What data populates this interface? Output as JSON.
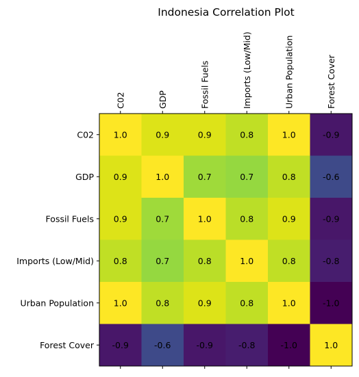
{
  "chart_data": {
    "type": "heatmap",
    "title": "Indonesia Correlation Plot",
    "x_categories": [
      "C02",
      "GDP",
      "Fossil Fuels",
      "Imports (Low/Mid)",
      "Urban Population",
      "Forest Cover"
    ],
    "y_categories": [
      "C02",
      "GDP",
      "Fossil Fuels",
      "Imports (Low/Mid)",
      "Urban Population",
      "Forest Cover"
    ],
    "x_tick_position": "top",
    "x_tick_rotation": 90,
    "colormap": "viridis",
    "value_range": [
      -1.0,
      1.0
    ],
    "grid": false,
    "values": [
      [
        1.0,
        0.9,
        0.9,
        0.8,
        1.0,
        -0.9
      ],
      [
        0.9,
        1.0,
        0.7,
        0.7,
        0.8,
        -0.6
      ],
      [
        0.9,
        0.7,
        1.0,
        0.8,
        0.9,
        -0.9
      ],
      [
        0.8,
        0.7,
        0.8,
        1.0,
        0.8,
        -0.8
      ],
      [
        1.0,
        0.8,
        0.9,
        0.8,
        1.0,
        -1.0
      ],
      [
        -0.9,
        -0.6,
        -0.9,
        -0.8,
        -1.0,
        1.0
      ]
    ],
    "labels": [
      [
        "1.0",
        "0.9",
        "0.9",
        "0.8",
        "1.0",
        "-0.9"
      ],
      [
        "0.9",
        "1.0",
        "0.7",
        "0.7",
        "0.8",
        "-0.6"
      ],
      [
        "0.9",
        "0.7",
        "1.0",
        "0.8",
        "0.9",
        "-0.9"
      ],
      [
        "0.8",
        "0.7",
        "0.8",
        "1.0",
        "0.8",
        "-0.8"
      ],
      [
        "1.0",
        "0.8",
        "0.9",
        "0.8",
        "1.0",
        "-1.0"
      ],
      [
        "-0.9",
        "-0.6",
        "-0.9",
        "-0.8",
        "-1.0",
        "1.0"
      ]
    ],
    "cell_colors": [
      [
        "#fde725",
        "#dde318",
        "#dde318",
        "#c0df25",
        "#fde725",
        "#481769"
      ],
      [
        "#dde318",
        "#fde725",
        "#9fda3a",
        "#95d840",
        "#c0df25",
        "#3e4a89"
      ],
      [
        "#dde318",
        "#9fda3a",
        "#fde725",
        "#bade28",
        "#dde318",
        "#481769"
      ],
      [
        "#c0df25",
        "#95d840",
        "#bade28",
        "#fde725",
        "#c0df25",
        "#471d6e"
      ],
      [
        "#fde725",
        "#c0df25",
        "#dde318",
        "#c0df25",
        "#fde725",
        "#440154"
      ],
      [
        "#481769",
        "#3e4a89",
        "#481769",
        "#471d6e",
        "#440154",
        "#fde725"
      ]
    ]
  }
}
